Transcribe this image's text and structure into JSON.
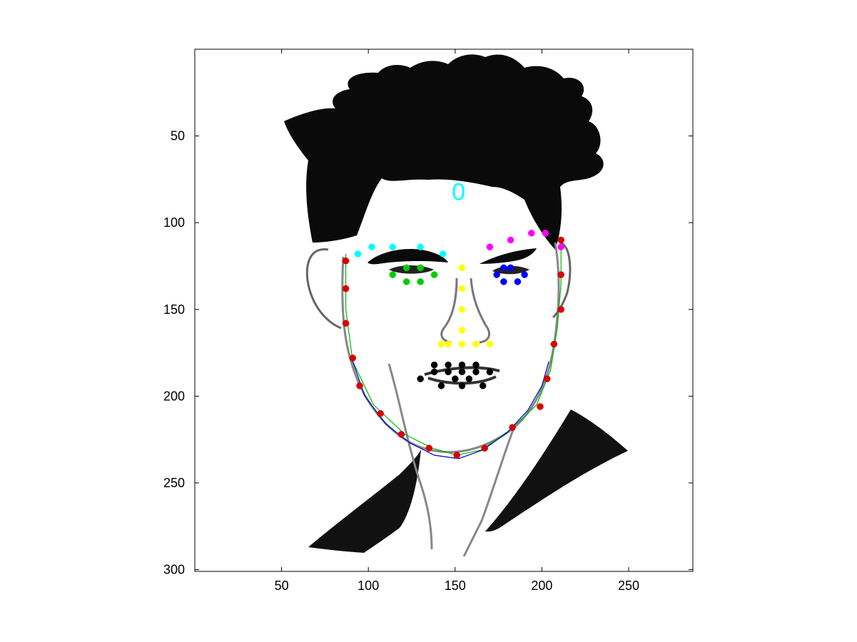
{
  "chart_data": {
    "type": "scatter",
    "title": "",
    "xlabel": "",
    "ylabel": "",
    "xlim": [
      0,
      287
    ],
    "ylim": [
      0,
      301
    ],
    "y_axis_direction": "reversed",
    "grid": false,
    "legend": "none",
    "xticks": [
      50,
      100,
      150,
      200,
      250
    ],
    "yticks": [
      50,
      100,
      150,
      200,
      250,
      300
    ],
    "background_image": "face-line-drawing",
    "annotations": [
      {
        "text": "0",
        "x": 152,
        "y": 87,
        "color": "#00ffff"
      }
    ],
    "series": [
      {
        "name": "right-eyebrow",
        "color": "#00ffff",
        "points": [
          [
            94,
            118
          ],
          [
            102,
            114
          ],
          [
            114,
            114
          ],
          [
            130,
            114
          ],
          [
            143,
            118
          ]
        ]
      },
      {
        "name": "left-eyebrow",
        "color": "#ff00ff",
        "points": [
          [
            170,
            114
          ],
          [
            182,
            110
          ],
          [
            194,
            106
          ],
          [
            202,
            106
          ],
          [
            211,
            114
          ]
        ]
      },
      {
        "name": "right-eye",
        "color": "#00cc00",
        "points": [
          [
            114,
            130
          ],
          [
            122,
            126
          ],
          [
            130,
            126
          ],
          [
            138,
            130
          ],
          [
            130,
            134
          ],
          [
            122,
            134
          ]
        ]
      },
      {
        "name": "left-eye",
        "color": "#0000ff",
        "points": [
          [
            174,
            130
          ],
          [
            178,
            126
          ],
          [
            182,
            126
          ],
          [
            190,
            130
          ],
          [
            186,
            134
          ],
          [
            178,
            134
          ]
        ]
      },
      {
        "name": "nose",
        "color": "#ffff00",
        "points": [
          [
            154,
            126
          ],
          [
            154,
            138
          ],
          [
            154,
            150
          ],
          [
            154,
            162
          ],
          [
            142,
            170
          ],
          [
            146,
            170
          ],
          [
            154,
            170
          ],
          [
            162,
            170
          ],
          [
            170,
            170
          ]
        ]
      },
      {
        "name": "mouth",
        "color": "#000000",
        "points": [
          [
            130,
            190
          ],
          [
            138,
            186
          ],
          [
            146,
            186
          ],
          [
            154,
            186
          ],
          [
            162,
            186
          ],
          [
            170,
            186
          ],
          [
            138,
            182
          ],
          [
            146,
            182
          ],
          [
            154,
            182
          ],
          [
            162,
            182
          ],
          [
            142,
            194
          ],
          [
            154,
            194
          ],
          [
            166,
            194
          ],
          [
            150,
            190
          ],
          [
            158,
            190
          ]
        ]
      },
      {
        "name": "jaw",
        "color": "#dd0000",
        "points": [
          [
            87,
            122
          ],
          [
            87,
            138
          ],
          [
            87,
            158
          ],
          [
            91,
            178
          ],
          [
            95,
            194
          ],
          [
            107,
            210
          ],
          [
            119,
            222
          ],
          [
            135,
            230
          ],
          [
            151,
            234
          ],
          [
            167,
            230
          ],
          [
            183,
            218
          ],
          [
            199,
            206
          ],
          [
            203,
            190
          ],
          [
            207,
            170
          ],
          [
            211,
            150
          ],
          [
            211,
            130
          ],
          [
            211,
            110
          ]
        ]
      }
    ],
    "curves": [
      {
        "name": "jaw-fit-green",
        "color": "#00bb00",
        "points": [
          [
            87,
            118
          ],
          [
            87,
            150
          ],
          [
            91,
            180
          ],
          [
            103,
            205
          ],
          [
            121,
            222
          ],
          [
            137,
            230
          ],
          [
            151,
            234
          ],
          [
            165,
            231
          ],
          [
            181,
            220
          ],
          [
            197,
            205
          ],
          [
            205,
            185
          ],
          [
            209,
            160
          ],
          [
            211,
            135
          ],
          [
            211,
            110
          ]
        ]
      },
      {
        "name": "jaw-fit-blue",
        "color": "#0000cc",
        "points": [
          [
            91,
            180
          ],
          [
            98,
            200
          ],
          [
            110,
            216
          ],
          [
            124,
            227
          ],
          [
            138,
            234
          ],
          [
            152,
            236
          ],
          [
            166,
            231
          ],
          [
            180,
            221
          ],
          [
            192,
            208
          ],
          [
            200,
            194
          ],
          [
            204,
            180
          ]
        ]
      }
    ]
  }
}
